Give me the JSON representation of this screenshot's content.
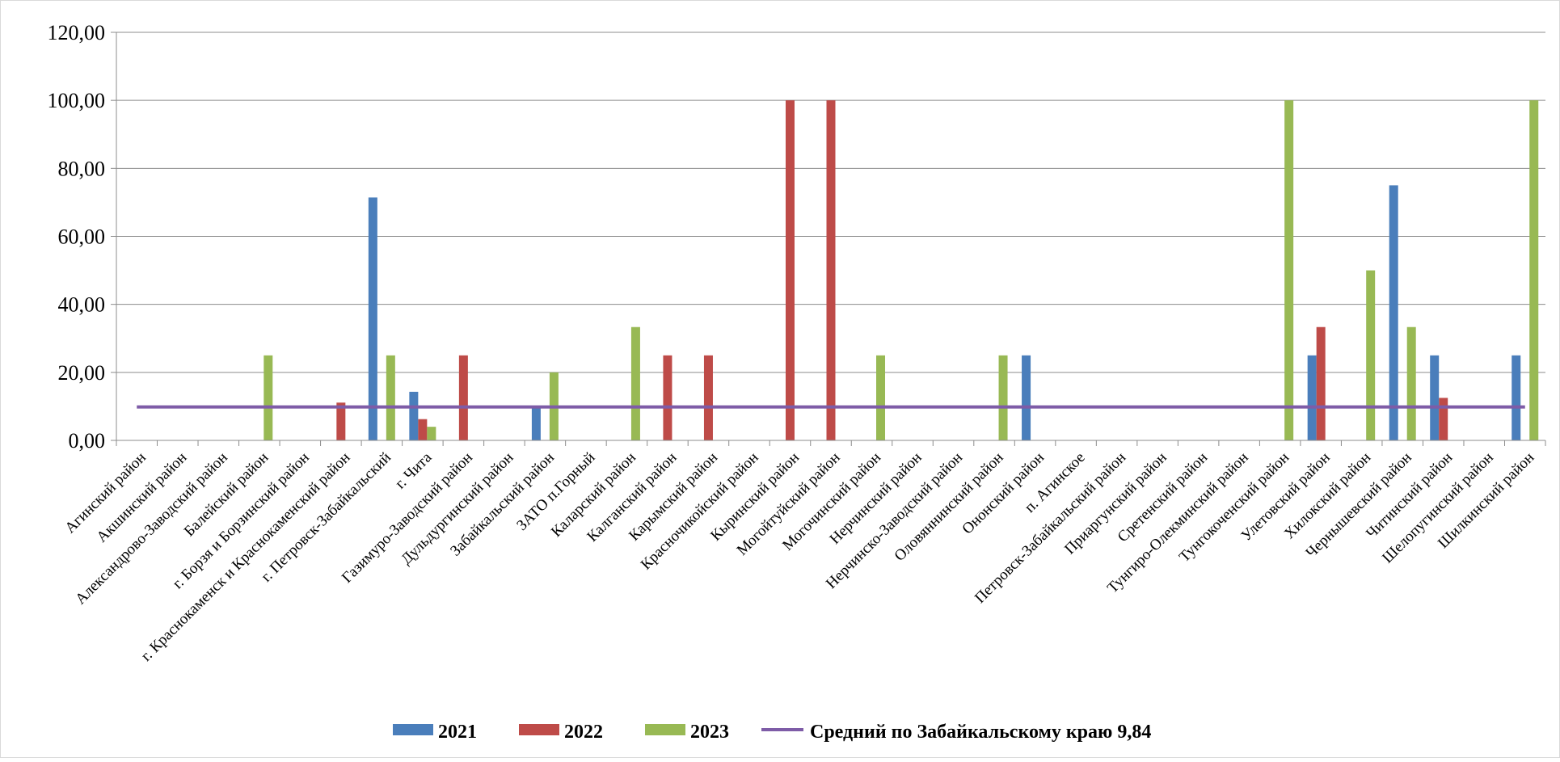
{
  "chart_data": {
    "type": "bar",
    "title": "",
    "xlabel": "",
    "ylabel": "",
    "ylim": [
      0,
      120
    ],
    "yticks": [
      "0,00",
      "20,00",
      "40,00",
      "60,00",
      "80,00",
      "100,00",
      "120,00"
    ],
    "grid": true,
    "legend_position": "bottom",
    "categories": [
      "Агинский район",
      "Акшинский район",
      "Александрово-Заводский район",
      "Балейский район",
      "г. Борзя и Борзинский район",
      "г. Краснокаменск и Краснокаменский район",
      "г. Петровск-Забайкальский",
      "г. Чита",
      "Газимуро-Заводский район",
      "Дульдургинский район",
      "Забайкальский район",
      "ЗАТО п.Горный",
      "Каларский район",
      "Калганский район",
      "Карымский район",
      "Красночикойский район",
      "Кыринский район",
      "Могойтуйский район",
      "Могочинский район",
      "Нерчинский район",
      "Нерчинско-Заводский район",
      "Оловяннинский район",
      "Ононский район",
      "п. Агинское",
      "Петровск-Забайкальский район",
      "Приаргунский район",
      "Сретенский район",
      "Тунгиро-Олекминский район",
      "Тунгокоченский район",
      "Улетовский район",
      "Хилокский район",
      "Чернышевский район",
      "Читинский район",
      "Шелопугинский район",
      "Шилкинский район"
    ],
    "series": [
      {
        "name": "2021",
        "color": "#4a7ebb",
        "values": [
          0,
          0,
          0,
          0,
          0,
          0,
          71.43,
          14.29,
          0,
          0,
          10,
          0,
          0,
          0,
          0,
          0,
          0,
          0,
          0,
          0,
          0,
          0,
          25,
          0,
          0,
          0,
          0,
          0,
          0,
          25,
          0,
          75,
          25,
          0,
          25
        ]
      },
      {
        "name": "2022",
        "color": "#be4b48",
        "values": [
          0,
          0,
          0,
          0,
          0,
          11.11,
          0,
          6.25,
          25,
          0,
          0,
          0,
          0,
          25,
          25,
          0,
          100,
          100,
          0,
          0,
          0,
          0,
          0,
          0,
          0,
          0,
          0,
          0,
          0,
          33.33,
          0,
          0,
          12.5,
          0,
          0
        ]
      },
      {
        "name": "2023",
        "color": "#98b954",
        "values": [
          0,
          0,
          0,
          25,
          0,
          0,
          25,
          4,
          0,
          0,
          20,
          0,
          33.33,
          0,
          0,
          0,
          0,
          0,
          25,
          0,
          0,
          25,
          0,
          0,
          0,
          0,
          0,
          0,
          100,
          0,
          50,
          33.33,
          0,
          0,
          100
        ]
      }
    ],
    "average_line": {
      "name": "Средний по Забайкальскому краю 9,84",
      "value": 9.84,
      "color": "#7e5ca7"
    }
  }
}
